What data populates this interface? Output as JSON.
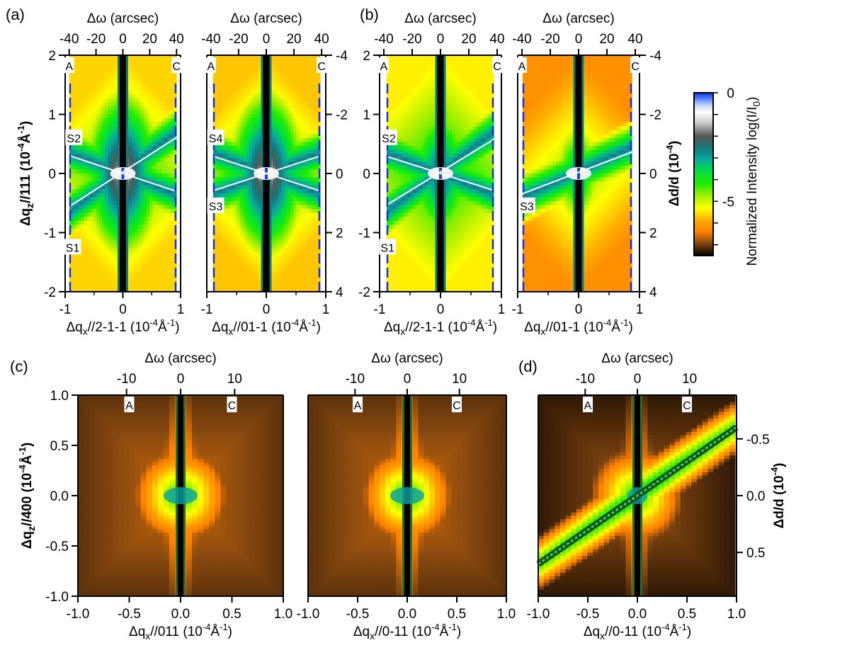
{
  "figure": {
    "colorbar": {
      "label": "Normalized Intensity log(I/I",
      "label_sub": "0",
      "label_close": ")",
      "ticks": [
        {
          "value": 0,
          "label": "0"
        },
        {
          "value": -5,
          "label": "-5"
        }
      ],
      "range": [
        -7.5,
        0
      ],
      "colormap_stops": [
        {
          "v": 0,
          "color": "#0033ee"
        },
        {
          "v": -0.6,
          "color": "#c8dcff"
        },
        {
          "v": -0.9,
          "color": "#ffffff"
        },
        {
          "v": -1.4,
          "color": "#c8c8c8"
        },
        {
          "v": -2.0,
          "color": "#555555"
        },
        {
          "v": -2.6,
          "color": "#127c7c"
        },
        {
          "v": -3.0,
          "color": "#0ba3a3"
        },
        {
          "v": -3.6,
          "color": "#00dd44"
        },
        {
          "v": -4.2,
          "color": "#22ee00"
        },
        {
          "v": -4.8,
          "color": "#aaf000"
        },
        {
          "v": -5.3,
          "color": "#ffff00"
        },
        {
          "v": -5.9,
          "color": "#ffaa00"
        },
        {
          "v": -6.4,
          "color": "#ff8000"
        },
        {
          "v": -6.9,
          "color": "#8a4a10"
        },
        {
          "v": -7.5,
          "color": "#000000"
        }
      ]
    }
  },
  "chart_data": [
    {
      "id": "a-left",
      "panel_label": "(a)",
      "type": "heatmap",
      "xlabel_prefix": "Δq",
      "xlabel_sub": "x",
      "xlabel_rest": "//2-1-1 (10",
      "xlabel_sup1": "-4",
      "xlabel_unit": "Å",
      "xlabel_sup2": "-1",
      "xlabel_close": ")",
      "top_label": "Δω (arcsec)",
      "ylabel_prefix": "Δq",
      "ylabel_sub": "z",
      "ylabel_rest": "//111 (10",
      "ylabel_sup1": "-4",
      "ylabel_unit": "Å",
      "ylabel_sup2": "-1",
      "ylabel_close": ")",
      "xlim": [
        -1,
        1
      ],
      "ylim": [
        -2,
        2
      ],
      "top_lim": [
        -43,
        43
      ],
      "xticks": [
        {
          "v": -1,
          "l": "-1"
        },
        {
          "v": 0,
          "l": "0"
        },
        {
          "v": 1,
          "l": "1"
        }
      ],
      "yticks": [
        {
          "v": -2,
          "l": "-2"
        },
        {
          "v": -1,
          "l": "-1"
        },
        {
          "v": 0,
          "l": "0"
        },
        {
          "v": 1,
          "l": "1"
        },
        {
          "v": 2,
          "l": "2"
        }
      ],
      "top_ticks": [
        {
          "v": -40,
          "l": "-40"
        },
        {
          "v": -20,
          "l": "-20"
        },
        {
          "v": 0,
          "l": "0"
        },
        {
          "v": 20,
          "l": "20"
        },
        {
          "v": 40,
          "l": "40"
        }
      ],
      "annotations": [
        {
          "text": "A",
          "x": -0.93,
          "y": 1.82
        },
        {
          "text": "C",
          "x": 0.93,
          "y": 1.82
        },
        {
          "text": "S2",
          "x": -0.85,
          "y": 0.6
        },
        {
          "text": "S1",
          "x": -0.87,
          "y": -1.25
        }
      ],
      "streaks": [
        {
          "x1": -1.0,
          "y1": 0.35,
          "x2": 1.0,
          "y2": -0.35
        },
        {
          "x1": -1.0,
          "y1": -0.65,
          "x2": 1.0,
          "y2": 0.7
        }
      ],
      "peak": {
        "x": 0.0,
        "y": 0.0,
        "value": 0
      },
      "background_level": -5.6
    },
    {
      "id": "a-right",
      "type": "heatmap",
      "xlabel_prefix": "Δq",
      "xlabel_sub": "x",
      "xlabel_rest": "//01-1 (10",
      "xlabel_sup1": "-4",
      "xlabel_unit": "Å",
      "xlabel_sup2": "-1",
      "xlabel_close": ")",
      "top_label": "Δω (arcsec)",
      "y2label_prefix": "",
      "xlim": [
        -1,
        1
      ],
      "ylim": [
        -2,
        2
      ],
      "top_lim": [
        -43,
        43
      ],
      "y2lim": [
        4,
        -4
      ],
      "xticks": [
        {
          "v": -1,
          "l": "-1"
        },
        {
          "v": 0,
          "l": "0"
        },
        {
          "v": 1,
          "l": "1"
        }
      ],
      "top_ticks": [
        {
          "v": -40,
          "l": "-40"
        },
        {
          "v": -20,
          "l": "-20"
        },
        {
          "v": 0,
          "l": "0"
        },
        {
          "v": 20,
          "l": "20"
        },
        {
          "v": 40,
          "l": "40"
        }
      ],
      "y2ticks": [
        {
          "v": -4,
          "l": "-4"
        },
        {
          "v": -2,
          "l": "-2"
        },
        {
          "v": 0,
          "l": "0"
        },
        {
          "v": 2,
          "l": "2"
        },
        {
          "v": 4,
          "l": "4"
        }
      ],
      "annotations": [
        {
          "text": "A",
          "x": -0.93,
          "y": 1.82
        },
        {
          "text": "C",
          "x": 0.93,
          "y": 1.82
        },
        {
          "text": "S4",
          "x": -0.85,
          "y": 0.6
        },
        {
          "text": "S3",
          "x": -0.85,
          "y": -0.55
        }
      ],
      "streaks": [
        {
          "x1": -1.0,
          "y1": 0.35,
          "x2": 1.0,
          "y2": -0.35
        },
        {
          "x1": -1.0,
          "y1": -0.35,
          "x2": 1.0,
          "y2": 0.35
        }
      ],
      "peak": {
        "x": 0.0,
        "y": 0.0,
        "value": 0
      },
      "background_level": -5.7
    },
    {
      "id": "b-left",
      "panel_label": "(b)",
      "type": "heatmap",
      "xlabel_prefix": "Δq",
      "xlabel_sub": "x",
      "xlabel_rest": "//2-1-1 (10",
      "xlabel_sup1": "-4",
      "xlabel_unit": "Å",
      "xlabel_sup2": "-1",
      "xlabel_close": ")",
      "top_label": "Δω (arcsec)",
      "xlim": [
        -1,
        1
      ],
      "ylim": [
        -2,
        2
      ],
      "top_lim": [
        -43,
        43
      ],
      "xticks": [
        {
          "v": -1,
          "l": "-1"
        },
        {
          "v": 0,
          "l": "0"
        },
        {
          "v": 1,
          "l": "1"
        }
      ],
      "yticks": [
        {
          "v": -2,
          "l": "-2"
        },
        {
          "v": -1,
          "l": "-1"
        },
        {
          "v": 0,
          "l": "0"
        },
        {
          "v": 1,
          "l": "1"
        },
        {
          "v": 2,
          "l": "2"
        }
      ],
      "top_ticks": [
        {
          "v": -40,
          "l": "-40"
        },
        {
          "v": -20,
          "l": "-20"
        },
        {
          "v": 0,
          "l": "0"
        },
        {
          "v": 20,
          "l": "20"
        },
        {
          "v": 40,
          "l": "40"
        }
      ],
      "annotations": [
        {
          "text": "A",
          "x": -0.93,
          "y": 1.82
        },
        {
          "text": "C",
          "x": 0.93,
          "y": 1.82
        },
        {
          "text": "S2",
          "x": -0.85,
          "y": 0.6
        },
        {
          "text": "S1",
          "x": -0.87,
          "y": -1.25
        }
      ],
      "streaks": [
        {
          "x1": -1.0,
          "y1": 0.35,
          "x2": 1.0,
          "y2": -0.35
        },
        {
          "x1": -1.0,
          "y1": -0.65,
          "x2": 1.0,
          "y2": 0.7
        }
      ],
      "peak": {
        "x": 0.0,
        "y": 0.0,
        "value": -1
      },
      "background_level": -5.4
    },
    {
      "id": "b-right",
      "type": "heatmap",
      "xlabel_prefix": "Δq",
      "xlabel_sub": "x",
      "xlabel_rest": "//01-1 (10",
      "xlabel_sup1": "-4",
      "xlabel_unit": "Å",
      "xlabel_sup2": "-1",
      "xlabel_close": ")",
      "top_label": "Δω (arcsec)",
      "y2label_prefix": "Δd/d (10",
      "y2label_sup": "-4",
      "y2label_close": ")",
      "xlim": [
        -1,
        1
      ],
      "ylim": [
        -2,
        2
      ],
      "top_lim": [
        -43,
        43
      ],
      "y2lim": [
        4,
        -4
      ],
      "xticks": [
        {
          "v": -1,
          "l": "-1"
        },
        {
          "v": 0,
          "l": "0"
        },
        {
          "v": 1,
          "l": "1"
        }
      ],
      "top_ticks": [
        {
          "v": -40,
          "l": "-40"
        },
        {
          "v": -20,
          "l": "-20"
        },
        {
          "v": 0,
          "l": "0"
        },
        {
          "v": 20,
          "l": "20"
        },
        {
          "v": 40,
          "l": "40"
        }
      ],
      "y2ticks": [
        {
          "v": -4,
          "l": "-4"
        },
        {
          "v": -2,
          "l": "-2"
        },
        {
          "v": 0,
          "l": "0"
        },
        {
          "v": 2,
          "l": "2"
        },
        {
          "v": 4,
          "l": "4"
        }
      ],
      "annotations": [
        {
          "text": "A",
          "x": -0.93,
          "y": 1.82
        },
        {
          "text": "C",
          "x": 0.93,
          "y": 1.82
        },
        {
          "text": "S3",
          "x": -0.85,
          "y": -0.55
        }
      ],
      "streaks": [
        {
          "x1": -1.0,
          "y1": -0.4,
          "x2": 0.9,
          "y2": 0.4
        }
      ],
      "peak": {
        "x": 0.0,
        "y": 0.0,
        "value": -2
      },
      "background_level": -6.2
    },
    {
      "id": "c-left",
      "panel_label": "(c)",
      "type": "heatmap",
      "xlabel_prefix": "Δq",
      "xlabel_sub": "x",
      "xlabel_rest": "//011 (10",
      "xlabel_sup1": "-4",
      "xlabel_unit": "Å",
      "xlabel_sup2": "-1",
      "xlabel_close": ")",
      "top_label": "Δω (arcsec)",
      "ylabel_prefix": "Δq",
      "ylabel_sub": "z",
      "ylabel_rest": "//400 (10",
      "ylabel_sup1": "-4",
      "ylabel_unit": "Å",
      "ylabel_sup2": "-1",
      "ylabel_close": ")",
      "xlim": [
        -1,
        1
      ],
      "ylim": [
        -1,
        1
      ],
      "top_lim": [
        -19,
        19
      ],
      "xticks": [
        {
          "v": -1,
          "l": "-1.0"
        },
        {
          "v": -0.5,
          "l": "-0.5"
        },
        {
          "v": 0,
          "l": "0.0"
        },
        {
          "v": 0.5,
          "l": "0.5"
        },
        {
          "v": 1,
          "l": "1.0"
        }
      ],
      "yticks": [
        {
          "v": -1,
          "l": "-1.0"
        },
        {
          "v": -0.5,
          "l": "-0.5"
        },
        {
          "v": 0,
          "l": "0.0"
        },
        {
          "v": 0.5,
          "l": "0.5"
        },
        {
          "v": 1,
          "l": "1.0"
        }
      ],
      "top_ticks": [
        {
          "v": -10,
          "l": "-10"
        },
        {
          "v": 0,
          "l": "0"
        },
        {
          "v": 10,
          "l": "10"
        }
      ],
      "annotations": [
        {
          "text": "A",
          "x": -0.5,
          "y": 0.9
        },
        {
          "text": "C",
          "x": 0.5,
          "y": 0.9
        }
      ],
      "streaks": [],
      "peak": {
        "x": 0.0,
        "y": 0.0,
        "value": -3
      },
      "background_level": -6.6
    },
    {
      "id": "c-right",
      "type": "heatmap",
      "xlabel_prefix": "Δq",
      "xlabel_sub": "x",
      "xlabel_rest": "//0-11 (10",
      "xlabel_sup1": "-4",
      "xlabel_unit": "Å",
      "xlabel_sup2": "-1",
      "xlabel_close": ")",
      "top_label": "Δω (arcsec)",
      "xlim": [
        -1,
        1
      ],
      "ylim": [
        -1,
        1
      ],
      "top_lim": [
        -19,
        19
      ],
      "xticks": [
        {
          "v": -1,
          "l": "-1.0"
        },
        {
          "v": -0.5,
          "l": "-0.5"
        },
        {
          "v": 0,
          "l": "0.0"
        },
        {
          "v": 0.5,
          "l": "0.5"
        },
        {
          "v": 1,
          "l": "1.0"
        }
      ],
      "top_ticks": [
        {
          "v": -10,
          "l": "-10"
        },
        {
          "v": 0,
          "l": "0"
        },
        {
          "v": 10,
          "l": "10"
        }
      ],
      "annotations": [
        {
          "text": "A",
          "x": -0.5,
          "y": 0.9
        },
        {
          "text": "C",
          "x": 0.5,
          "y": 0.9
        }
      ],
      "streaks": [],
      "peak": {
        "x": 0.0,
        "y": 0.0,
        "value": -3
      },
      "background_level": -6.6
    },
    {
      "id": "d",
      "panel_label": "(d)",
      "type": "heatmap",
      "xlabel_prefix": "Δq",
      "xlabel_sub": "x",
      "xlabel_rest": "//0-11 (10",
      "xlabel_sup1": "-4",
      "xlabel_unit": "Å",
      "xlabel_sup2": "-1",
      "xlabel_close": ")",
      "top_label": "Δω (arcsec)",
      "y2label_prefix": "Δd/d (10",
      "y2label_sup": "-4",
      "y2label_close": ")",
      "xlim": [
        -1,
        1
      ],
      "ylim": [
        -1,
        1
      ],
      "top_lim": [
        -19,
        19
      ],
      "y2lim": [
        0.885,
        -0.885
      ],
      "xticks": [
        {
          "v": -1,
          "l": "-1.0"
        },
        {
          "v": -0.5,
          "l": "-0.5"
        },
        {
          "v": 0,
          "l": "0.0"
        },
        {
          "v": 0.5,
          "l": "0.5"
        },
        {
          "v": 1,
          "l": "1.0"
        }
      ],
      "top_ticks": [
        {
          "v": -10,
          "l": "-10"
        },
        {
          "v": 0,
          "l": "0"
        },
        {
          "v": 10,
          "l": "10"
        }
      ],
      "y2ticks": [
        {
          "v": -0.5,
          "l": "-0.5"
        },
        {
          "v": 0,
          "l": "0.0"
        },
        {
          "v": 0.5,
          "l": "0.5"
        }
      ],
      "annotations": [
        {
          "text": "A",
          "x": -0.5,
          "y": 0.9
        },
        {
          "text": "C",
          "x": 0.5,
          "y": 0.9
        }
      ],
      "streaks": [
        {
          "x1": -1.0,
          "y1": -0.68,
          "x2": 1.0,
          "y2": 0.68
        }
      ],
      "peak": {
        "x": 0.0,
        "y": 0.0,
        "value": -3
      },
      "background_level": -6.8
    }
  ]
}
